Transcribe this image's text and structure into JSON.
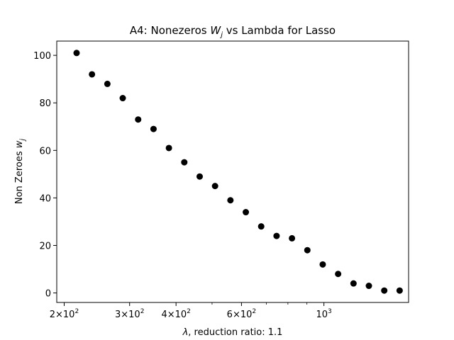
{
  "chart_data": {
    "type": "scatter",
    "title": "A4: Nonezeros W_j vs Lambda for Lasso",
    "title_parts": {
      "prefix": "A4: Nonezeros ",
      "var": "W",
      "sub": "j",
      "suffix": " vs Lambda for Lasso"
    },
    "xlabel": "λ, reduction ratio: 1.1",
    "xlabel_parts": {
      "var": "λ",
      "suffix": ", reduction ratio: 1.1"
    },
    "ylabel": "Non Zeroes w_j",
    "ylabel_parts": {
      "prefix": "Non Zeroes ",
      "var": "w",
      "sub": "j"
    },
    "xscale": "log",
    "xlim": [
      191,
      1690
    ],
    "ylim": [
      -4,
      106
    ],
    "grid": false,
    "marker_color": "#000000",
    "x_major_ticks": [
      {
        "value": 200,
        "mantissa": "2",
        "base": "10",
        "exp": "2"
      },
      {
        "value": 300,
        "mantissa": "3",
        "base": "10",
        "exp": "2"
      },
      {
        "value": 400,
        "mantissa": "4",
        "base": "10",
        "exp": "2"
      },
      {
        "value": 600,
        "mantissa": "6",
        "base": "10",
        "exp": "2"
      },
      {
        "value": 1000,
        "mantissa": "",
        "base": "10",
        "exp": "3"
      }
    ],
    "x_minor_ticks": [
      500,
      700,
      800,
      900
    ],
    "y_ticks": [
      0,
      20,
      40,
      60,
      80,
      100
    ],
    "x": [
      216.0,
      237.6,
      261.4,
      287.5,
      316.3,
      347.9,
      382.7,
      421.0,
      463.1,
      509.4,
      560.3,
      616.4,
      678.0,
      745.8,
      820.4,
      902.5,
      992.7,
      1092.0,
      1201.2,
      1321.3,
      1453.4,
      1598.7
    ],
    "y": [
      101,
      92,
      88,
      82,
      73,
      69,
      61,
      55,
      49,
      45,
      39,
      34,
      28,
      24,
      23,
      18,
      12,
      8,
      4,
      3,
      1,
      1
    ]
  }
}
